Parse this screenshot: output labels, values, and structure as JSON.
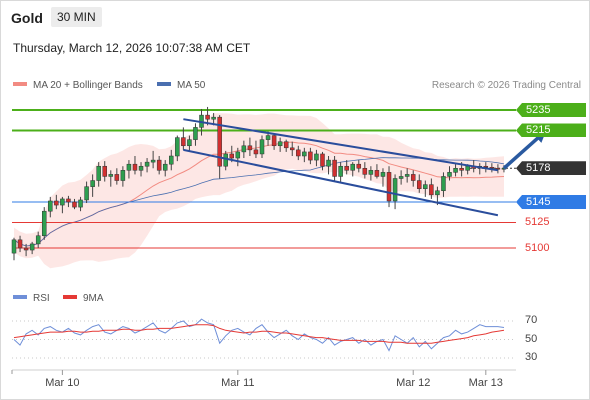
{
  "header": {
    "instrument": "Gold",
    "timeframe": "30 MIN",
    "datetime": "Thursday, March 12, 2026 10:07:38 AM CET",
    "credit": "Research © 2026 Trading Central"
  },
  "legend": {
    "main": [
      {
        "label": "MA 20 + Bollinger Bands",
        "color": "#f28b82"
      },
      {
        "label": "MA 50",
        "color": "#4a6fb0"
      }
    ],
    "rsi": [
      {
        "label": "RSI",
        "color": "#6f8fd8"
      },
      {
        "label": "9MA",
        "color": "#e53935"
      }
    ]
  },
  "levels": [
    {
      "value": 5235,
      "label": "5235",
      "color": "#4caf1a",
      "style": "tag"
    },
    {
      "value": 5215,
      "label": "5215",
      "color": "#4caf1a",
      "style": "tag"
    },
    {
      "value": 5178,
      "label": "5178",
      "color": "#333333",
      "style": "tag"
    },
    {
      "value": 5145,
      "label": "5145",
      "color": "#2f7be5",
      "style": "tag"
    },
    {
      "value": 5125,
      "label": "5125",
      "color": "#e53935",
      "style": "text"
    },
    {
      "value": 5100,
      "label": "5100",
      "color": "#e53935",
      "style": "text"
    }
  ],
  "chart_data": [
    {
      "type": "candlestick",
      "title": "Gold 30 MIN",
      "x_labels": [
        "Mar 10",
        "Mar 11",
        "Mar 12",
        "Mar 13"
      ],
      "x_label_bars": [
        8,
        37,
        66,
        78
      ],
      "bar_count": 82,
      "ylim": [
        5085,
        5255
      ],
      "last_price": 5178,
      "indicators": [
        "MA 20 + Bollinger Bands",
        "MA 50"
      ],
      "ohlc": [
        [
          5095,
          5110,
          5088,
          5108
        ],
        [
          5108,
          5112,
          5096,
          5100
        ],
        [
          5100,
          5104,
          5092,
          5098
        ],
        [
          5098,
          5106,
          5094,
          5104
        ],
        [
          5104,
          5116,
          5100,
          5112
        ],
        [
          5112,
          5140,
          5108,
          5136
        ],
        [
          5136,
          5150,
          5130,
          5146
        ],
        [
          5146,
          5152,
          5138,
          5142
        ],
        [
          5142,
          5150,
          5134,
          5148
        ],
        [
          5148,
          5151,
          5140,
          5145
        ],
        [
          5145,
          5148,
          5138,
          5140
        ],
        [
          5140,
          5150,
          5136,
          5147
        ],
        [
          5147,
          5165,
          5144,
          5160
        ],
        [
          5160,
          5172,
          5150,
          5166
        ],
        [
          5166,
          5184,
          5160,
          5180
        ],
        [
          5180,
          5185,
          5165,
          5170
        ],
        [
          5170,
          5176,
          5160,
          5172
        ],
        [
          5172,
          5178,
          5162,
          5166
        ],
        [
          5166,
          5180,
          5160,
          5176
        ],
        [
          5176,
          5186,
          5168,
          5182
        ],
        [
          5182,
          5190,
          5172,
          5176
        ],
        [
          5176,
          5184,
          5170,
          5180
        ],
        [
          5180,
          5188,
          5174,
          5184
        ],
        [
          5184,
          5195,
          5178,
          5186
        ],
        [
          5186,
          5190,
          5172,
          5176
        ],
        [
          5176,
          5186,
          5170,
          5182
        ],
        [
          5182,
          5196,
          5176,
          5190
        ],
        [
          5190,
          5210,
          5185,
          5208
        ],
        [
          5208,
          5218,
          5196,
          5200
        ],
        [
          5200,
          5210,
          5194,
          5206
        ],
        [
          5206,
          5222,
          5200,
          5218
        ],
        [
          5218,
          5236,
          5210,
          5230
        ],
        [
          5230,
          5238,
          5220,
          5226
        ],
        [
          5226,
          5232,
          5220,
          5228
        ],
        [
          5228,
          5230,
          5168,
          5180
        ],
        [
          5180,
          5195,
          5176,
          5192
        ],
        [
          5192,
          5200,
          5184,
          5188
        ],
        [
          5188,
          5198,
          5180,
          5194
        ],
        [
          5194,
          5205,
          5188,
          5200
        ],
        [
          5200,
          5208,
          5190,
          5196
        ],
        [
          5196,
          5205,
          5188,
          5192
        ],
        [
          5192,
          5210,
          5188,
          5206
        ],
        [
          5206,
          5214,
          5200,
          5210
        ],
        [
          5210,
          5212,
          5196,
          5200
        ],
        [
          5200,
          5208,
          5194,
          5204
        ],
        [
          5204,
          5206,
          5194,
          5198
        ],
        [
          5198,
          5204,
          5190,
          5196
        ],
        [
          5196,
          5200,
          5186,
          5190
        ],
        [
          5190,
          5198,
          5184,
          5194
        ],
        [
          5194,
          5198,
          5182,
          5186
        ],
        [
          5186,
          5196,
          5180,
          5192
        ],
        [
          5192,
          5194,
          5176,
          5180
        ],
        [
          5180,
          5190,
          5172,
          5186
        ],
        [
          5186,
          5190,
          5166,
          5170
        ],
        [
          5170,
          5184,
          5164,
          5180
        ],
        [
          5180,
          5186,
          5172,
          5176
        ],
        [
          5176,
          5184,
          5170,
          5182
        ],
        [
          5182,
          5186,
          5174,
          5178
        ],
        [
          5178,
          5184,
          5168,
          5172
        ],
        [
          5172,
          5180,
          5166,
          5176
        ],
        [
          5176,
          5182,
          5168,
          5170
        ],
        [
          5170,
          5178,
          5160,
          5174
        ],
        [
          5174,
          5180,
          5140,
          5146
        ],
        [
          5146,
          5172,
          5138,
          5168
        ],
        [
          5168,
          5176,
          5162,
          5170
        ],
        [
          5170,
          5178,
          5164,
          5172
        ],
        [
          5172,
          5176,
          5160,
          5166
        ],
        [
          5166,
          5172,
          5154,
          5158
        ],
        [
          5158,
          5166,
          5150,
          5162
        ],
        [
          5162,
          5168,
          5148,
          5152
        ],
        [
          5152,
          5160,
          5142,
          5156
        ],
        [
          5156,
          5174,
          5150,
          5170
        ],
        [
          5170,
          5180,
          5166,
          5174
        ],
        [
          5174,
          5182,
          5170,
          5178
        ],
        [
          5178,
          5184,
          5170,
          5176
        ],
        [
          5176,
          5182,
          5172,
          5180
        ],
        [
          5180,
          5186,
          5174,
          5178
        ],
        [
          5178,
          5183,
          5172,
          5180
        ],
        [
          5180,
          5184,
          5174,
          5179
        ],
        [
          5179,
          5183,
          5174,
          5178
        ],
        [
          5178,
          5182,
          5173,
          5177
        ],
        [
          5177,
          5181,
          5174,
          5178
        ]
      ],
      "trend_lines": [
        {
          "from": [
            28,
            5196
          ],
          "to": [
            80,
            5132
          ],
          "color": "#2a4d9c"
        },
        {
          "from": [
            28,
            5226
          ],
          "to": [
            80,
            5176
          ],
          "color": "#2a4d9c"
        }
      ],
      "projection_arrow": {
        "from": [
          81,
          5178
        ],
        "to": [
          88,
          5215
        ],
        "color": "#2a5aa0"
      }
    },
    {
      "type": "line",
      "title": "RSI",
      "yticks": [
        70,
        50,
        30
      ],
      "ylim": [
        20,
        80
      ],
      "series": [
        {
          "name": "RSI",
          "color": "#6f8fd8",
          "values": [
            50,
            44,
            56,
            60,
            55,
            62,
            64,
            60,
            58,
            62,
            57,
            55,
            60,
            64,
            66,
            58,
            56,
            60,
            64,
            62,
            57,
            60,
            64,
            68,
            60,
            57,
            62,
            68,
            70,
            64,
            66,
            72,
            68,
            66,
            46,
            54,
            60,
            62,
            58,
            55,
            62,
            66,
            58,
            52,
            56,
            60,
            54,
            50,
            56,
            52,
            50,
            46,
            52,
            44,
            48,
            50,
            52,
            46,
            50,
            44,
            48,
            50,
            38,
            54,
            50,
            46,
            52,
            42,
            48,
            40,
            46,
            52,
            54,
            60,
            56,
            58,
            62,
            66,
            64,
            64,
            64,
            63
          ]
        },
        {
          "name": "9MA",
          "color": "#e53935",
          "values": [
            52,
            53,
            54,
            55,
            56,
            57,
            58,
            58,
            58,
            59,
            59,
            58,
            58,
            59,
            59,
            60,
            60,
            60,
            61,
            61,
            60,
            60,
            61,
            61,
            62,
            62,
            62,
            63,
            64,
            65,
            66,
            66,
            66,
            65,
            62,
            60,
            59,
            58,
            57,
            58,
            58,
            59,
            59,
            58,
            57,
            57,
            56,
            55,
            54,
            53,
            52,
            52,
            51,
            50,
            49,
            49,
            49,
            49,
            48,
            48,
            48,
            48,
            47,
            47,
            47,
            46,
            46,
            46,
            46,
            46,
            47,
            48,
            49,
            50,
            51,
            52,
            54,
            55,
            56,
            58,
            59,
            60
          ]
        }
      ]
    }
  ]
}
